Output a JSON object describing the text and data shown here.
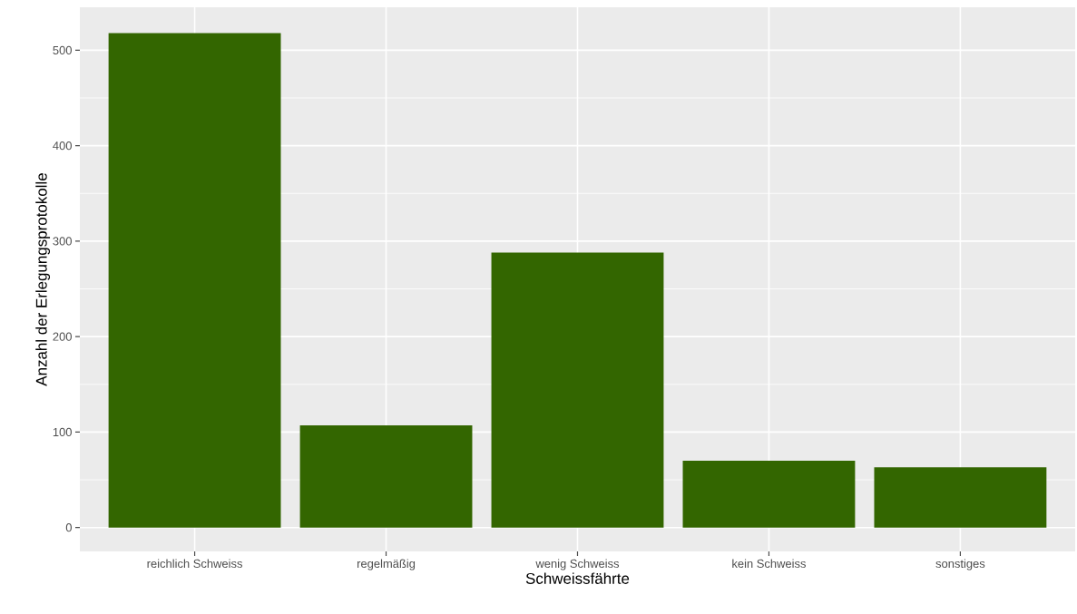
{
  "chart_data": {
    "type": "bar",
    "xlabel": "Schweissfährte",
    "ylabel": "Anzahl der Erlegungsprotokolle",
    "categories": [
      "reichlich Schweiss",
      "regelmäßig",
      "wenig Schweiss",
      "kein Schweiss",
      "sonstiges"
    ],
    "values": [
      518,
      107,
      288,
      70,
      63
    ],
    "color": "#336600",
    "ylim": [
      -25,
      545
    ],
    "yticks": [
      0,
      100,
      200,
      300,
      400,
      500
    ],
    "grid": true
  }
}
